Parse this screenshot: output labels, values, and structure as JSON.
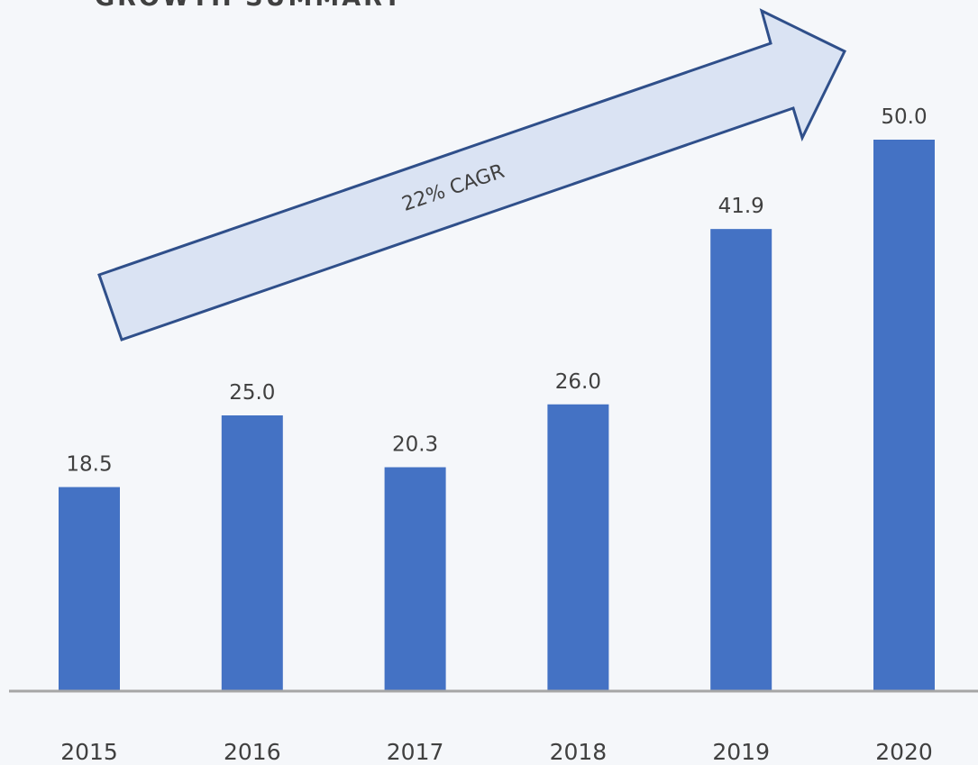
{
  "chart_data": {
    "type": "bar",
    "title": "GROWTH SUMMARY",
    "categories": [
      "2015",
      "2016",
      "2017",
      "2018",
      "2019",
      "2020"
    ],
    "values": [
      18.5,
      25,
      20.3,
      26,
      41.9,
      50
    ],
    "value_labels": [
      "18.5",
      "25.0",
      "20.3",
      "26.0",
      "41.9",
      "50.0"
    ],
    "color": "#4472c4",
    "annotation": "22% CAGR"
  }
}
